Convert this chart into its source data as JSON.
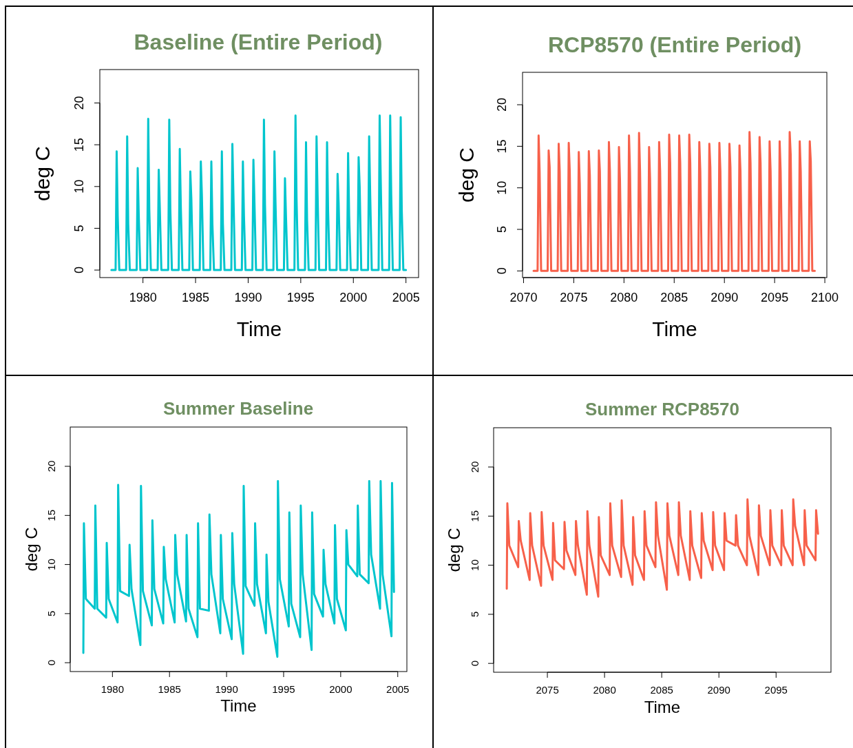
{
  "chart_data": [
    {
      "type": "line",
      "title": "Baseline (Entire Period)",
      "xlabel": "Time",
      "ylabel": "deg C",
      "xlim": [
        1975.9,
        2006.2
      ],
      "ylim": [
        -0.9,
        24
      ],
      "xticks": [
        1980,
        1985,
        1990,
        1995,
        2000,
        2005
      ],
      "yticks": [
        0,
        5,
        10,
        15,
        20
      ],
      "x": [
        1977.0,
        1977.4,
        1977.5,
        1977.6,
        1977.75,
        1978.4,
        1978.5,
        1978.6,
        1978.75,
        1979.4,
        1979.5,
        1979.6,
        1979.75,
        1980.4,
        1980.5,
        1980.6,
        1980.75,
        1981.4,
        1981.5,
        1981.6,
        1981.75,
        1982.4,
        1982.5,
        1982.6,
        1982.75,
        1983.4,
        1983.5,
        1983.6,
        1983.75,
        1984.4,
        1984.5,
        1984.6,
        1984.75,
        1985.4,
        1985.5,
        1985.6,
        1985.75,
        1986.4,
        1986.5,
        1986.6,
        1986.75,
        1987.4,
        1987.5,
        1987.6,
        1987.75,
        1988.4,
        1988.5,
        1988.6,
        1988.75,
        1989.4,
        1989.5,
        1989.6,
        1989.75,
        1990.4,
        1990.5,
        1990.6,
        1990.75,
        1991.4,
        1991.5,
        1991.6,
        1991.75,
        1992.4,
        1992.5,
        1992.6,
        1992.75,
        1993.4,
        1993.5,
        1993.6,
        1993.75,
        1994.4,
        1994.5,
        1994.6,
        1994.75,
        1995.4,
        1995.5,
        1995.6,
        1995.75,
        1996.4,
        1996.5,
        1996.6,
        1996.75,
        1997.4,
        1997.5,
        1997.6,
        1997.75,
        1998.4,
        1998.5,
        1998.6,
        1998.75,
        1999.4,
        1999.5,
        1999.6,
        1999.75,
        2000.4,
        2000.5,
        2000.6,
        2000.75,
        2001.4,
        2001.5,
        2001.6,
        2001.75,
        2002.4,
        2002.5,
        2002.6,
        2002.75,
        2003.4,
        2003.5,
        2003.6,
        2003.75,
        2004.4,
        2004.5,
        2004.6,
        2004.75,
        2005.0
      ],
      "series": [
        {
          "color": "#00c5cd",
          "values": [
            0,
            0,
            14.2,
            6.5,
            0,
            0,
            16.0,
            5.5,
            0,
            0,
            12.2,
            6.5,
            0,
            0,
            18.1,
            7.3,
            0,
            0,
            12.0,
            7.5,
            0,
            0,
            18.0,
            7.3,
            0,
            0,
            14.5,
            7.5,
            0,
            0,
            11.8,
            8.5,
            0,
            0,
            13.0,
            9.0,
            0,
            0,
            13.0,
            5.5,
            0,
            0,
            14.2,
            5.5,
            0,
            0,
            15.1,
            9.0,
            0,
            0,
            13.0,
            6.5,
            0,
            0,
            13.2,
            8.0,
            0,
            0,
            18.0,
            7.8,
            0,
            0,
            14.2,
            8.0,
            0,
            0,
            11.0,
            6.2,
            0,
            0,
            18.5,
            8.5,
            0,
            0,
            15.3,
            6.0,
            0,
            0,
            16.0,
            9.0,
            0,
            0,
            15.3,
            7.0,
            0,
            0,
            11.5,
            8.0,
            0,
            0,
            14.0,
            6.5,
            0,
            0,
            13.5,
            10.0,
            0,
            0,
            16.0,
            9.0,
            0,
            0,
            18.5,
            11.0,
            0,
            0,
            18.5,
            9.0,
            0,
            0,
            18.3,
            7.2,
            0,
            0
          ]
        }
      ]
    },
    {
      "type": "line",
      "title": "RCP8570 (Entire Period)",
      "xlabel": "Time",
      "ylabel": "deg C",
      "xlim": [
        2069.9,
        2100.2
      ],
      "ylim": [
        -0.8,
        23.9
      ],
      "xticks": [
        2070,
        2075,
        2080,
        2085,
        2090,
        2095,
        2100
      ],
      "yticks": [
        0,
        5,
        10,
        15,
        20
      ],
      "x": [
        2071.0,
        2071.4,
        2071.5,
        2071.6,
        2071.75,
        2072.4,
        2072.5,
        2072.6,
        2072.75,
        2073.4,
        2073.5,
        2073.6,
        2073.75,
        2074.4,
        2074.5,
        2074.6,
        2074.75,
        2075.4,
        2075.5,
        2075.6,
        2075.75,
        2076.4,
        2076.5,
        2076.6,
        2076.75,
        2077.4,
        2077.5,
        2077.6,
        2077.75,
        2078.4,
        2078.5,
        2078.6,
        2078.75,
        2079.4,
        2079.5,
        2079.6,
        2079.75,
        2080.4,
        2080.5,
        2080.6,
        2080.75,
        2081.4,
        2081.5,
        2081.6,
        2081.75,
        2082.4,
        2082.5,
        2082.6,
        2082.75,
        2083.4,
        2083.5,
        2083.6,
        2083.75,
        2084.4,
        2084.5,
        2084.6,
        2084.75,
        2085.4,
        2085.5,
        2085.6,
        2085.75,
        2086.4,
        2086.5,
        2086.6,
        2086.75,
        2087.4,
        2087.5,
        2087.6,
        2087.75,
        2088.4,
        2088.5,
        2088.6,
        2088.75,
        2089.4,
        2089.5,
        2089.6,
        2089.75,
        2090.4,
        2090.5,
        2090.6,
        2090.75,
        2091.4,
        2091.5,
        2091.6,
        2091.75,
        2092.4,
        2092.5,
        2092.6,
        2092.75,
        2093.4,
        2093.5,
        2093.6,
        2093.75,
        2094.4,
        2094.5,
        2094.6,
        2094.75,
        2095.4,
        2095.5,
        2095.6,
        2095.75,
        2096.4,
        2096.5,
        2096.6,
        2096.75,
        2097.4,
        2097.5,
        2097.6,
        2097.75,
        2098.4,
        2098.5,
        2098.6,
        2098.75,
        2099.0
      ],
      "series": [
        {
          "color": "#f7604a",
          "values": [
            0,
            0,
            16.3,
            12.0,
            0,
            0,
            14.5,
            12.5,
            0,
            0,
            15.3,
            12.0,
            0,
            0,
            15.4,
            12.0,
            0,
            0,
            14.3,
            10.5,
            0,
            0,
            14.4,
            11.5,
            0,
            0,
            14.5,
            12.0,
            0,
            0,
            15.5,
            12.0,
            0,
            0,
            14.9,
            11.0,
            0,
            0,
            16.3,
            12.0,
            0,
            0,
            16.6,
            12.0,
            0,
            0,
            14.9,
            11.0,
            0,
            0,
            15.5,
            12.0,
            0,
            0,
            16.4,
            13.0,
            0,
            0,
            16.3,
            13.0,
            0,
            0,
            16.4,
            13.0,
            0,
            0,
            15.5,
            12.0,
            0,
            0,
            15.3,
            12.5,
            0,
            0,
            15.4,
            12.0,
            0,
            0,
            15.3,
            12.5,
            0,
            0,
            15.1,
            12.0,
            0,
            0,
            16.7,
            13.0,
            0,
            0,
            16.1,
            13.0,
            0,
            0,
            15.6,
            12.0,
            0,
            0,
            15.6,
            12.0,
            0,
            0,
            16.7,
            14.0,
            0,
            0,
            15.6,
            12.0,
            0,
            0,
            15.6,
            13.2,
            0,
            0
          ]
        }
      ]
    },
    {
      "type": "line",
      "title": "Summer Baseline",
      "xlabel": "Time",
      "ylabel": "deg C",
      "xlim": [
        1976.3,
        2005.8
      ],
      "ylim": [
        -0.9,
        24
      ],
      "xticks": [
        1980,
        1985,
        1990,
        1995,
        2000,
        2005
      ],
      "yticks": [
        0,
        5,
        10,
        15,
        20
      ],
      "x": [
        1977.45,
        1977.5,
        1977.67,
        1978.45,
        1978.5,
        1978.67,
        1979.45,
        1979.5,
        1979.67,
        1980.45,
        1980.5,
        1980.67,
        1981.45,
        1981.5,
        1981.67,
        1982.45,
        1982.5,
        1982.67,
        1983.45,
        1983.5,
        1983.67,
        1984.45,
        1984.5,
        1984.67,
        1985.45,
        1985.5,
        1985.67,
        1986.45,
        1986.5,
        1986.67,
        1987.45,
        1987.5,
        1987.67,
        1988.45,
        1988.5,
        1988.67,
        1989.45,
        1989.5,
        1989.67,
        1990.45,
        1990.5,
        1990.67,
        1991.45,
        1991.5,
        1991.67,
        1992.45,
        1992.5,
        1992.67,
        1993.45,
        1993.5,
        1993.67,
        1994.45,
        1994.5,
        1994.67,
        1995.45,
        1995.5,
        1995.67,
        1996.45,
        1996.5,
        1996.67,
        1997.45,
        1997.5,
        1997.67,
        1998.45,
        1998.5,
        1998.67,
        1999.45,
        1999.5,
        1999.67,
        2000.45,
        2000.5,
        2000.67,
        2001.45,
        2001.5,
        2001.67,
        2002.45,
        2002.5,
        2002.67,
        2003.45,
        2003.5,
        2003.67,
        2004.45,
        2004.5,
        2004.67
      ],
      "series": [
        {
          "color": "#00c5cd",
          "values": [
            1.0,
            14.2,
            6.5,
            5.5,
            16.0,
            5.5,
            4.6,
            12.2,
            6.5,
            4.1,
            18.1,
            7.3,
            6.8,
            12.0,
            7.5,
            1.8,
            18.0,
            7.3,
            3.8,
            14.5,
            7.5,
            4.0,
            11.8,
            8.5,
            4.1,
            13.0,
            9.0,
            4.2,
            13.0,
            5.5,
            2.6,
            14.2,
            5.5,
            5.3,
            15.1,
            9.0,
            3.0,
            13.0,
            6.5,
            2.4,
            13.2,
            8.0,
            0.9,
            18.0,
            7.8,
            5.8,
            14.2,
            8.0,
            3.0,
            11.0,
            6.2,
            0.6,
            18.5,
            8.5,
            3.7,
            15.3,
            6.0,
            2.6,
            16.0,
            9.0,
            1.3,
            15.3,
            7.0,
            4.7,
            11.5,
            8.0,
            4.0,
            14.0,
            6.5,
            3.3,
            13.5,
            10.0,
            8.8,
            16.0,
            9.0,
            8.1,
            18.5,
            11.0,
            5.5,
            18.5,
            9.0,
            2.7,
            18.3,
            7.2
          ]
        }
      ]
    },
    {
      "type": "line",
      "title": "Summer RCP8570",
      "xlabel": "Time",
      "ylabel": "deg C",
      "xlim": [
        2070.3,
        2099.8
      ],
      "ylim": [
        -0.9,
        24
      ],
      "xticks": [
        2075,
        2080,
        2085,
        2090,
        2095
      ],
      "yticks": [
        0,
        5,
        10,
        15,
        20
      ],
      "x": [
        2071.45,
        2071.5,
        2071.67,
        2072.45,
        2072.5,
        2072.67,
        2073.45,
        2073.5,
        2073.67,
        2074.45,
        2074.5,
        2074.67,
        2075.45,
        2075.5,
        2075.67,
        2076.45,
        2076.5,
        2076.67,
        2077.45,
        2077.5,
        2077.67,
        2078.45,
        2078.5,
        2078.67,
        2079.45,
        2079.5,
        2079.67,
        2080.45,
        2080.5,
        2080.67,
        2081.45,
        2081.5,
        2081.67,
        2082.45,
        2082.5,
        2082.67,
        2083.45,
        2083.5,
        2083.67,
        2084.45,
        2084.5,
        2084.67,
        2085.45,
        2085.5,
        2085.67,
        2086.45,
        2086.5,
        2086.67,
        2087.45,
        2087.5,
        2087.67,
        2088.45,
        2088.5,
        2088.67,
        2089.45,
        2089.5,
        2089.67,
        2090.45,
        2090.5,
        2090.67,
        2091.45,
        2091.5,
        2091.67,
        2092.45,
        2092.5,
        2092.67,
        2093.45,
        2093.5,
        2093.67,
        2094.45,
        2094.5,
        2094.67,
        2095.45,
        2095.5,
        2095.67,
        2096.45,
        2096.5,
        2096.67,
        2097.45,
        2097.5,
        2097.67,
        2098.45,
        2098.5,
        2098.67
      ],
      "series": [
        {
          "color": "#f7604a",
          "values": [
            7.6,
            16.3,
            12.0,
            9.8,
            14.5,
            12.5,
            8.5,
            15.3,
            12.0,
            7.9,
            15.4,
            12.0,
            8.5,
            14.3,
            10.5,
            9.6,
            14.4,
            11.5,
            9.0,
            14.5,
            12.0,
            7.0,
            15.5,
            12.0,
            6.8,
            14.9,
            11.0,
            9.0,
            16.3,
            12.0,
            8.8,
            16.6,
            12.0,
            8.0,
            14.9,
            11.0,
            8.5,
            15.5,
            12.0,
            9.8,
            16.4,
            13.0,
            7.5,
            16.3,
            13.0,
            9.0,
            16.4,
            13.0,
            8.5,
            15.5,
            12.0,
            8.7,
            15.3,
            12.5,
            9.5,
            15.4,
            12.0,
            9.5,
            15.3,
            12.5,
            12.0,
            15.1,
            12.0,
            10.0,
            16.7,
            13.0,
            9.0,
            16.1,
            13.0,
            10.0,
            15.6,
            12.0,
            10.0,
            15.6,
            12.0,
            10.0,
            16.7,
            14.0,
            10.0,
            15.6,
            12.0,
            10.5,
            15.6,
            13.2
          ]
        }
      ]
    }
  ]
}
